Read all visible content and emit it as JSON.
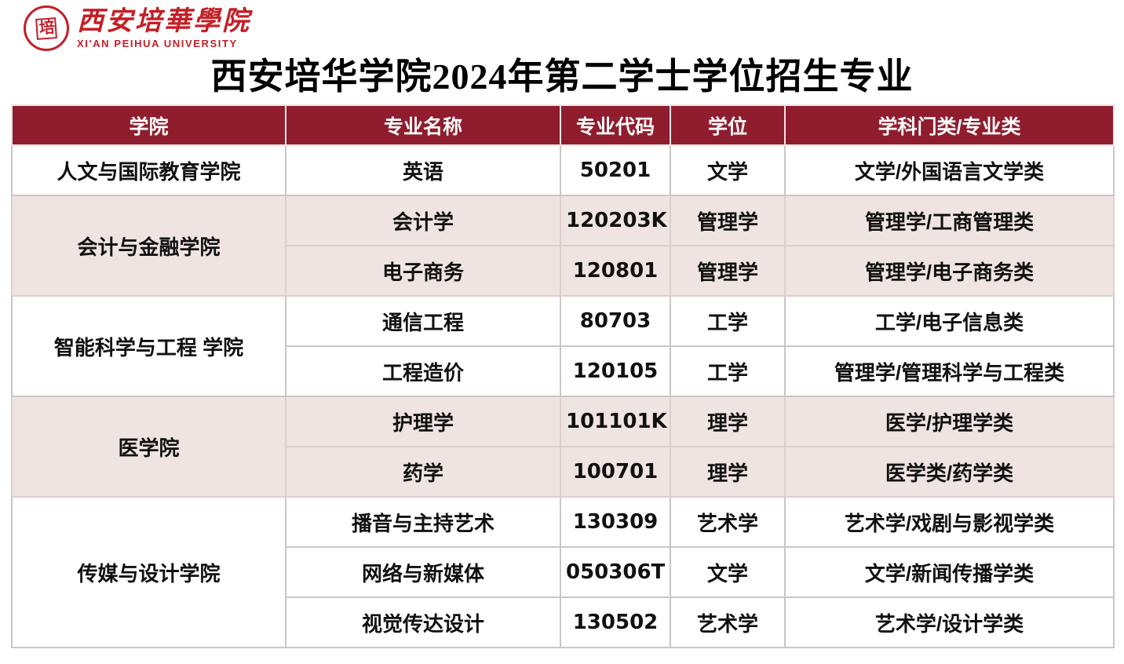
{
  "logo": {
    "seal_text": "培",
    "university_cn": "西安培華學院",
    "university_en": "XI'AN PEIHUA UNIVERSITY"
  },
  "title": "西安培华学院2024年第二学士学位招生专业",
  "colors": {
    "header_bg": "#8F1D2E",
    "shaded_row_bg": "#EFE4E2",
    "border": "#C9C6C6",
    "logo_red": "#C41E26"
  },
  "table": {
    "headers": [
      "学院",
      "专业名称",
      "专业代码",
      "学位",
      "学科门类/专业类"
    ],
    "groups": [
      {
        "college": "人文与国际教育学院",
        "shaded": false,
        "majors": [
          {
            "name": "英语",
            "code": "50201",
            "degree": "文学",
            "category": "文学/外国语言文学类"
          }
        ]
      },
      {
        "college": "会计与金融学院",
        "shaded": true,
        "majors": [
          {
            "name": "会计学",
            "code": "120203K",
            "degree": "管理学",
            "category": "管理学/工商管理类"
          },
          {
            "name": "电子商务",
            "code": "120801",
            "degree": "管理学",
            "category": "管理学/电子商务类"
          }
        ]
      },
      {
        "college": "智能科学与工程 学院",
        "shaded": false,
        "majors": [
          {
            "name": "通信工程",
            "code": "80703",
            "degree": "工学",
            "category": "工学/电子信息类"
          },
          {
            "name": "工程造价",
            "code": "120105",
            "degree": "工学",
            "category": "管理学/管理科学与工程类"
          }
        ]
      },
      {
        "college": "医学院",
        "shaded": true,
        "majors": [
          {
            "name": "护理学",
            "code": "101101K",
            "degree": "理学",
            "category": "医学/护理学类"
          },
          {
            "name": "药学",
            "code": "100701",
            "degree": "理学",
            "category": "医学类/药学类"
          }
        ]
      },
      {
        "college": "传媒与设计学院",
        "shaded": false,
        "majors": [
          {
            "name": "播音与主持艺术",
            "code": "130309",
            "degree": "艺术学",
            "category": "艺术学/戏剧与影视学类"
          },
          {
            "name": "网络与新媒体",
            "code": "050306T",
            "degree": "文学",
            "category": "文学/新闻传播学类"
          },
          {
            "name": "视觉传达设计",
            "code": "130502",
            "degree": "艺术学",
            "category": "艺术学/设计学类"
          }
        ]
      }
    ]
  }
}
